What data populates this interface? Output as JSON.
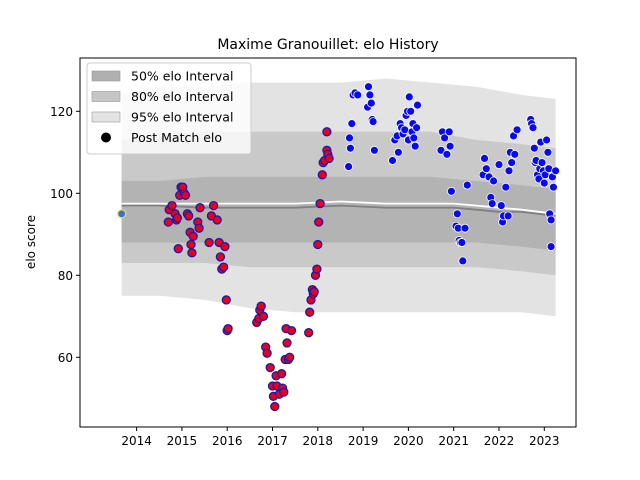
{
  "chart_data": {
    "type": "scatter",
    "title": "Maxime Granouillet: elo History",
    "xlabel": "",
    "ylabel": "elo score",
    "xlim": [
      2012.75,
      2023.7
    ],
    "ylim": [
      43,
      133
    ],
    "xticks": [
      2014,
      2015,
      2016,
      2017,
      2018,
      2019,
      2020,
      2021,
      2022,
      2023
    ],
    "yticks": [
      60,
      80,
      100,
      120
    ],
    "grid": false,
    "legend_position": "top-left",
    "legend": [
      {
        "label": "50% elo Interval",
        "kind": "band",
        "color": "#b0b0b0"
      },
      {
        "label": "80% elo Interval",
        "kind": "band",
        "color": "#c6c6c6"
      },
      {
        "label": "95% elo Interval",
        "kind": "band",
        "color": "#e3e3e3"
      },
      {
        "label": "Post Match elo",
        "kind": "marker",
        "color": "#000000"
      }
    ],
    "colors": {
      "band_95": "#e3e3e3",
      "band_80": "#c9c9c9",
      "band_50": "#b3b3b3",
      "median_line": "#808080",
      "mean_line": "#ffffff",
      "point_red_fill": "#e8001c",
      "point_red_edge": "#1a1aa8",
      "point_blue_fill": "#0a0af0",
      "point_blue_edge": "#ffffff",
      "initial_fill": "#3a6fd8",
      "initial_edge": "#f2e04a"
    },
    "bands": {
      "x": [
        2013.67,
        2014.5,
        2015.5,
        2016.5,
        2017.5,
        2018.5,
        2019.5,
        2020.5,
        2021.5,
        2022.5,
        2023.25
      ],
      "band95": {
        "lower": [
          75,
          75,
          74,
          72,
          71,
          71,
          71,
          71,
          71,
          71,
          70
        ],
        "upper": [
          124,
          126,
          126,
          127,
          127,
          127,
          128,
          127,
          126,
          124,
          123
        ]
      },
      "band80": {
        "lower": [
          83,
          83,
          83,
          82,
          82,
          82,
          82,
          82,
          82,
          81,
          80
        ],
        "upper": [
          113,
          114,
          115,
          115,
          115,
          115,
          115,
          115,
          113,
          112,
          111
        ]
      },
      "band50": {
        "lower": [
          88,
          88,
          88,
          88,
          88,
          88,
          88,
          88,
          88,
          87,
          86
        ],
        "upper": [
          103,
          103,
          104,
          104,
          104,
          104,
          104,
          104,
          103,
          102,
          101
        ]
      }
    },
    "median_line": {
      "x": [
        2013.67,
        2014.5,
        2015.5,
        2016.5,
        2017.5,
        2018.5,
        2019.5,
        2020.5,
        2021.0,
        2021.5,
        2022.0,
        2022.5,
        2023.25
      ],
      "y": [
        97,
        97,
        96.5,
        96.5,
        96.5,
        97,
        96.5,
        96.5,
        96.5,
        96,
        95.5,
        95.5,
        94.5
      ]
    },
    "mean_line": {
      "x": [
        2013.67,
        2014.5,
        2015.5,
        2016.5,
        2017.5,
        2018.5,
        2019.5,
        2020.5,
        2021.0,
        2021.5,
        2022.0,
        2022.5,
        2023.25
      ],
      "y": [
        97.5,
        97.5,
        97.5,
        97.5,
        97.5,
        98,
        97.5,
        97.5,
        97.5,
        97,
        96.5,
        96,
        95
      ]
    },
    "initial_point": {
      "x": 2013.67,
      "y": 95
    },
    "series": [
      {
        "name": "Post Match elo",
        "style": "red",
        "points": [
          [
            2014.7,
            93
          ],
          [
            2014.72,
            96
          ],
          [
            2014.78,
            97
          ],
          [
            2014.85,
            95
          ],
          [
            2014.88,
            93.5
          ],
          [
            2014.9,
            94
          ],
          [
            2014.92,
            86.5
          ],
          [
            2014.95,
            99.5
          ],
          [
            2014.98,
            101.5
          ],
          [
            2015.02,
            101.5
          ],
          [
            2015.05,
            100
          ],
          [
            2015.08,
            99.5
          ],
          [
            2015.12,
            95
          ],
          [
            2015.15,
            94.5
          ],
          [
            2015.18,
            90.5
          ],
          [
            2015.2,
            87.5
          ],
          [
            2015.22,
            85.5
          ],
          [
            2015.25,
            89.5
          ],
          [
            2015.35,
            93
          ],
          [
            2015.38,
            91.5
          ],
          [
            2015.4,
            96.5
          ],
          [
            2015.6,
            88
          ],
          [
            2015.65,
            94.5
          ],
          [
            2015.7,
            97
          ],
          [
            2015.78,
            93.5
          ],
          [
            2015.82,
            88
          ],
          [
            2015.85,
            84.5
          ],
          [
            2015.88,
            81.5
          ],
          [
            2015.92,
            82
          ],
          [
            2015.95,
            87
          ],
          [
            2015.98,
            74
          ],
          [
            2016.0,
            66.5
          ],
          [
            2016.02,
            67
          ],
          [
            2016.65,
            68.5
          ],
          [
            2016.7,
            69.5
          ],
          [
            2016.72,
            71.5
          ],
          [
            2016.75,
            72.5
          ],
          [
            2016.8,
            70
          ],
          [
            2016.85,
            62.5
          ],
          [
            2016.88,
            61
          ],
          [
            2016.95,
            57.5
          ],
          [
            2017.0,
            53
          ],
          [
            2017.02,
            50.5
          ],
          [
            2017.05,
            48
          ],
          [
            2017.08,
            55.5
          ],
          [
            2017.1,
            53
          ],
          [
            2017.15,
            51
          ],
          [
            2017.2,
            56
          ],
          [
            2017.22,
            52.5
          ],
          [
            2017.25,
            51.5
          ],
          [
            2017.28,
            59.5
          ],
          [
            2017.3,
            67
          ],
          [
            2017.32,
            63.5
          ],
          [
            2017.35,
            59.5
          ],
          [
            2017.38,
            60
          ],
          [
            2017.42,
            66.5
          ],
          [
            2017.8,
            66
          ],
          [
            2017.82,
            71
          ],
          [
            2017.85,
            74
          ],
          [
            2017.88,
            76.5
          ],
          [
            2017.9,
            75.5
          ],
          [
            2017.92,
            76
          ],
          [
            2017.95,
            80
          ],
          [
            2017.98,
            81.5
          ],
          [
            2018.0,
            87.5
          ],
          [
            2018.02,
            93
          ],
          [
            2018.05,
            97.5
          ],
          [
            2018.1,
            104.5
          ],
          [
            2018.12,
            107.5
          ],
          [
            2018.15,
            108
          ],
          [
            2018.2,
            110.5
          ],
          [
            2018.22,
            109.5
          ],
          [
            2018.25,
            108.5
          ],
          [
            2018.2,
            115
          ]
        ]
      },
      {
        "name": "Post Match elo",
        "style": "blue",
        "points": [
          [
            2018.68,
            106.5
          ],
          [
            2018.7,
            113.5
          ],
          [
            2018.72,
            111
          ],
          [
            2018.75,
            117
          ],
          [
            2018.78,
            124
          ],
          [
            2018.82,
            124.5
          ],
          [
            2018.88,
            124
          ],
          [
            2019.1,
            121
          ],
          [
            2019.12,
            126
          ],
          [
            2019.15,
            124
          ],
          [
            2019.18,
            122
          ],
          [
            2019.2,
            118
          ],
          [
            2019.22,
            117.5
          ],
          [
            2019.25,
            110.5
          ],
          [
            2019.65,
            108
          ],
          [
            2019.7,
            113
          ],
          [
            2019.75,
            114
          ],
          [
            2019.78,
            110
          ],
          [
            2019.82,
            117
          ],
          [
            2019.85,
            116
          ],
          [
            2019.88,
            114.5
          ],
          [
            2019.92,
            115.5
          ],
          [
            2019.95,
            119
          ],
          [
            2019.98,
            120
          ],
          [
            2020.0,
            113
          ],
          [
            2020.02,
            123.5
          ],
          [
            2020.05,
            120
          ],
          [
            2020.08,
            115
          ],
          [
            2020.1,
            117
          ],
          [
            2020.12,
            113.5
          ],
          [
            2020.15,
            111.5
          ],
          [
            2020.18,
            116
          ],
          [
            2020.2,
            121.5
          ],
          [
            2020.72,
            110.5
          ],
          [
            2020.75,
            115
          ],
          [
            2020.8,
            113.5
          ],
          [
            2020.85,
            109.5
          ],
          [
            2020.9,
            115
          ],
          [
            2020.92,
            111.5
          ],
          [
            2020.95,
            100.5
          ],
          [
            2021.05,
            92
          ],
          [
            2021.08,
            95
          ],
          [
            2021.1,
            91.5
          ],
          [
            2021.12,
            88.5
          ],
          [
            2021.15,
            88
          ],
          [
            2021.18,
            88
          ],
          [
            2021.2,
            83.5
          ],
          [
            2021.25,
            91.5
          ],
          [
            2021.3,
            102
          ],
          [
            2021.65,
            104.5
          ],
          [
            2021.68,
            108.5
          ],
          [
            2021.72,
            106
          ],
          [
            2021.78,
            104
          ],
          [
            2021.82,
            99
          ],
          [
            2021.85,
            97.5
          ],
          [
            2021.88,
            103
          ],
          [
            2022.0,
            107
          ],
          [
            2022.05,
            97
          ],
          [
            2022.08,
            93
          ],
          [
            2022.1,
            94.5
          ],
          [
            2022.15,
            101.5
          ],
          [
            2022.2,
            94.5
          ],
          [
            2022.22,
            105.5
          ],
          [
            2022.25,
            110
          ],
          [
            2022.28,
            107.5
          ],
          [
            2022.32,
            114
          ],
          [
            2022.35,
            109.5
          ],
          [
            2022.4,
            115.5
          ],
          [
            2022.7,
            118
          ],
          [
            2022.72,
            117
          ],
          [
            2022.75,
            116
          ],
          [
            2022.78,
            111
          ],
          [
            2022.8,
            107.5
          ],
          [
            2022.82,
            108
          ],
          [
            2022.85,
            104.5
          ],
          [
            2022.88,
            103.5
          ],
          [
            2022.9,
            106
          ],
          [
            2022.92,
            112.5
          ],
          [
            2022.95,
            107.5
          ],
          [
            2022.98,
            105.5
          ],
          [
            2023.0,
            102.5
          ],
          [
            2023.02,
            104.5
          ],
          [
            2023.05,
            113
          ],
          [
            2023.08,
            110
          ],
          [
            2023.1,
            106
          ],
          [
            2023.12,
            95
          ],
          [
            2023.15,
            87
          ],
          [
            2023.15,
            93.5
          ],
          [
            2023.18,
            104
          ],
          [
            2023.2,
            101.5
          ],
          [
            2023.25,
            105.5
          ]
        ]
      }
    ]
  }
}
